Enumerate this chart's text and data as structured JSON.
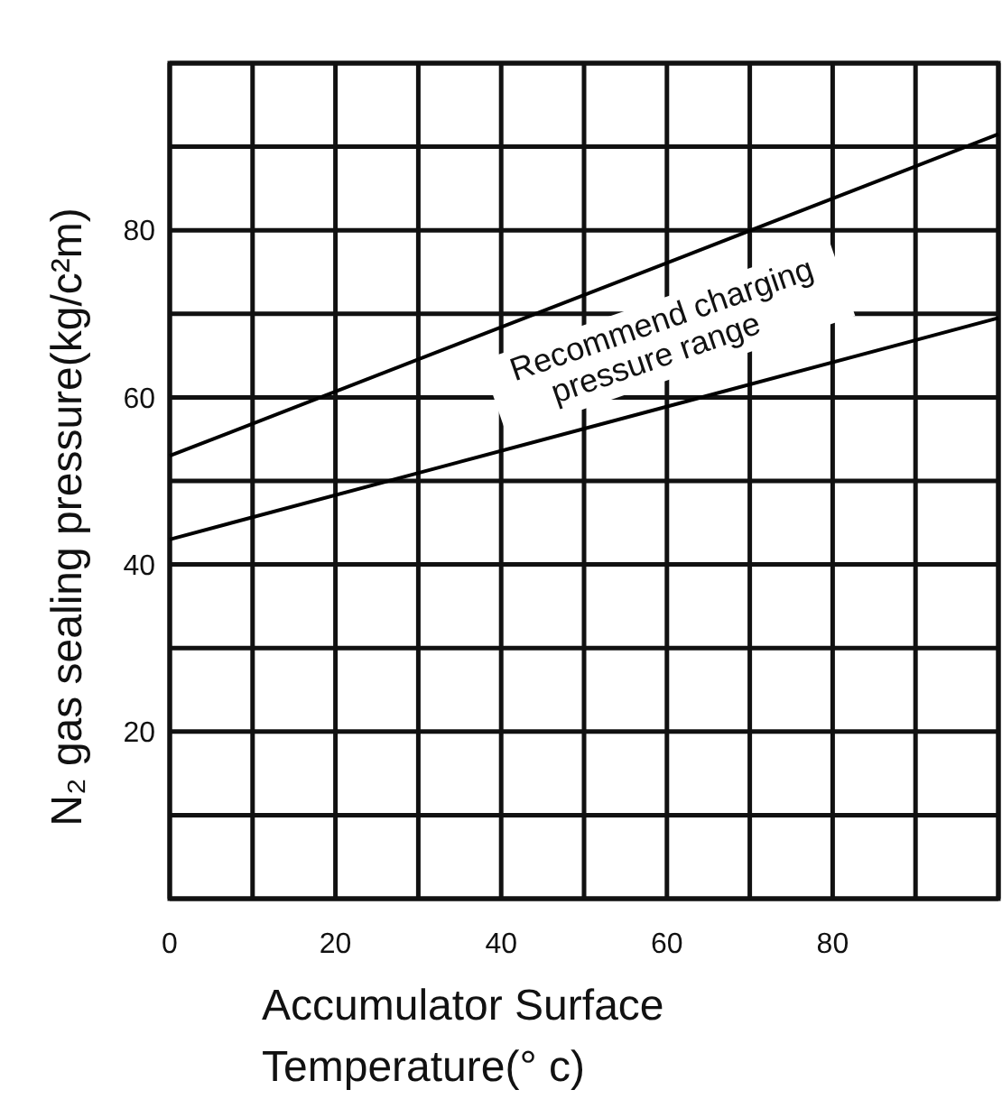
{
  "chart_data": {
    "type": "line",
    "xlabel": "Accumulator Surface\nTemperature(° c)",
    "ylabel": "N₂ gas sealing pressure(kg/c²m)",
    "x": [
      0,
      100
    ],
    "series": [
      {
        "color": "#000000",
        "values": [
          53,
          91.5
        ]
      },
      {
        "color": "#000000",
        "values": [
          43,
          69.5
        ]
      }
    ],
    "xlim": [
      0,
      100
    ],
    "ylim": [
      0,
      100
    ],
    "xticks": [
      0,
      {
        "value": 10,
        "label": null
      },
      20,
      {
        "value": 30,
        "label": null
      },
      40,
      {
        "value": 50,
        "label": null
      },
      60,
      {
        "value": 70,
        "label": null
      },
      80,
      {
        "value": 90,
        "label": null
      },
      {
        "value": 100,
        "label": null
      }
    ],
    "yticks": [
      {
        "value": 0,
        "label": null
      },
      {
        "value": 10,
        "label": null
      },
      20,
      {
        "value": 30,
        "label": null
      },
      40,
      {
        "value": 50,
        "label": null
      },
      60,
      {
        "value": 70,
        "label": null
      },
      80,
      {
        "value": 90,
        "label": null
      },
      {
        "value": 100,
        "label": null
      }
    ],
    "grid": true,
    "marker": "none",
    "line_style": "solid",
    "annotations": [
      "Recommend charging\npressure range"
    ]
  }
}
